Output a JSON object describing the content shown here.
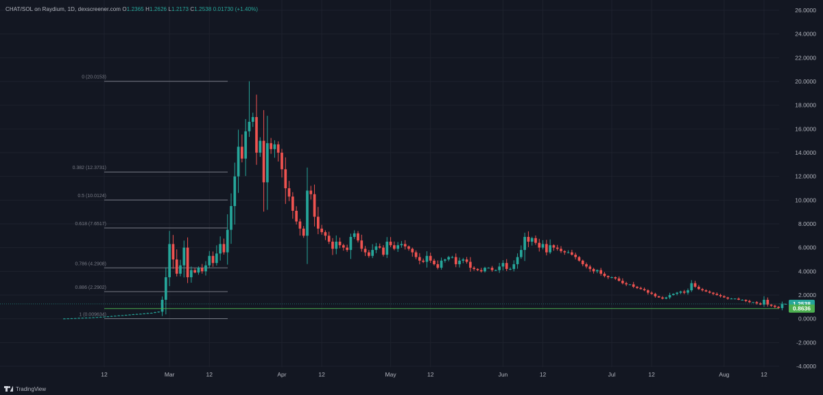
{
  "header": {
    "symbol_text": "CHAT/SOL on Raydium, 1D, dexscreener.com",
    "open_key": "O",
    "open": "1.2365",
    "high_key": "H",
    "high": "1.2626",
    "low_key": "L",
    "low": "1.2173",
    "close_key": "C",
    "close": "1.2538",
    "change": "0.01730 (+1.40%)"
  },
  "footer": {
    "brand_label": "TradingView",
    "logo_icon": "tradingview-logo-icon"
  },
  "colors": {
    "background": "#131722",
    "up": "#26a69a",
    "down": "#ef5350",
    "grid": "#1e222d",
    "text": "#b2b5be",
    "fib": "#787b86",
    "last_price_bg": "#26a69a",
    "green_line": "#4caf50"
  },
  "chart_data": {
    "type": "candlestick",
    "y_axis": {
      "min": -4,
      "max": 26,
      "ticks": [
        "26.0000",
        "24.0000",
        "22.0000",
        "20.0000",
        "18.0000",
        "16.0000",
        "14.0000",
        "12.0000",
        "10.0000",
        "8.0000",
        "6.0000",
        "4.0000",
        "2.0000",
        "0.0000",
        "-2.0000",
        "-4.0000"
      ]
    },
    "x_axis": {
      "start_date": "2024-01-31",
      "end_date": "2024-08-16",
      "ticks": [
        {
          "label": "12",
          "date": "2024-02-12"
        },
        {
          "label": "Mar",
          "date": "2024-03-01"
        },
        {
          "label": "12",
          "date": "2024-03-12"
        },
        {
          "label": "Apr",
          "date": "2024-04-01"
        },
        {
          "label": "12",
          "date": "2024-04-12"
        },
        {
          "label": "May",
          "date": "2024-05-01"
        },
        {
          "label": "12",
          "date": "2024-05-12"
        },
        {
          "label": "Jun",
          "date": "2024-06-01"
        },
        {
          "label": "12",
          "date": "2024-06-12"
        },
        {
          "label": "Jul",
          "date": "2024-07-01"
        },
        {
          "label": "12",
          "date": "2024-07-12"
        },
        {
          "label": "Aug",
          "date": "2024-08-01"
        },
        {
          "label": "12",
          "date": "2024-08-12"
        }
      ]
    },
    "fib_levels": [
      {
        "label": "0 (20.0153)",
        "value": 20.0153
      },
      {
        "label": "0.382 (12.3731)",
        "value": 12.3731
      },
      {
        "label": "0.5 (10.0124)",
        "value": 10.0124
      },
      {
        "label": "0.618 (7.6517)",
        "value": 7.6517
      },
      {
        "label": "0.786 (4.2908)",
        "value": 4.2908
      },
      {
        "label": "0.886 (2.2902)",
        "value": 2.2902
      },
      {
        "label": "1 (0.009634)",
        "value": 0.009634
      }
    ],
    "price_labels": [
      {
        "label": "1.2538",
        "value": 1.2538,
        "kind": "last"
      },
      {
        "label": "0.8636",
        "value": 0.8636,
        "kind": "line"
      }
    ],
    "closes": [
      0.02,
      0.03,
      0.04,
      0.05,
      0.07,
      0.08,
      0.09,
      0.1,
      0.12,
      0.14,
      0.16,
      0.18,
      0.2,
      0.23,
      0.25,
      0.28,
      0.3,
      0.32,
      0.35,
      0.38,
      0.4,
      0.42,
      0.45,
      0.48,
      0.5,
      0.55,
      0.6,
      1.6,
      3.5,
      6.3,
      5.0,
      3.8,
      4.5,
      6.0,
      3.5,
      4.1,
      3.9,
      4.3,
      4.0,
      4.5,
      5.3,
      4.7,
      5.5,
      6.3,
      5.6,
      7.5,
      9.5,
      12.0,
      14.5,
      13.5,
      15.8,
      16.6,
      17.0,
      14.0,
      15.0,
      11.5,
      14.8,
      14.3,
      14.7,
      14.0,
      12.6,
      11.0,
      10.3,
      9.1,
      8.2,
      7.6,
      7.0,
      10.8,
      10.5,
      8.6,
      7.6,
      7.3,
      7.0,
      6.5,
      5.9,
      6.5,
      6.2,
      6.0,
      5.8,
      6.9,
      7.2,
      6.6,
      5.9,
      5.6,
      5.3,
      5.8,
      6.1,
      6.0,
      5.4,
      6.5,
      6.2,
      5.9,
      6.2,
      6.3,
      6.1,
      5.9,
      5.6,
      5.2,
      4.9,
      4.8,
      5.3,
      4.9,
      4.6,
      4.3,
      4.9,
      5.0,
      5.2,
      5.2,
      4.6,
      4.9,
      5.0,
      4.8,
      4.3,
      4.2,
      4.1,
      4.0,
      4.3,
      4.3,
      4.1,
      4.1,
      4.4,
      4.7,
      4.2,
      4.2,
      4.6,
      5.2,
      5.8,
      6.9,
      6.5,
      6.8,
      6.4,
      6.0,
      6.3,
      5.6,
      6.2,
      6.0,
      5.9,
      5.7,
      5.6,
      5.6,
      5.4,
      5.2,
      4.9,
      4.6,
      4.4,
      4.2,
      4.0,
      4.1,
      3.8,
      3.6,
      3.5,
      3.5,
      3.4,
      3.2,
      3.0,
      2.9,
      2.9,
      2.7,
      2.6,
      2.5,
      2.4,
      2.2,
      2.1,
      1.9,
      1.8,
      1.7,
      1.8,
      2.0,
      2.1,
      2.2,
      2.3,
      2.2,
      2.4,
      3.0,
      2.7,
      2.5,
      2.4,
      2.3,
      2.2,
      2.1,
      2.0,
      1.9,
      1.8,
      1.7,
      1.7,
      1.7,
      1.6,
      1.6,
      1.5,
      1.4,
      1.4,
      1.3,
      1.2,
      1.6,
      1.2,
      1.1,
      1.0,
      0.9,
      1.2368,
      1.2538
    ]
  }
}
